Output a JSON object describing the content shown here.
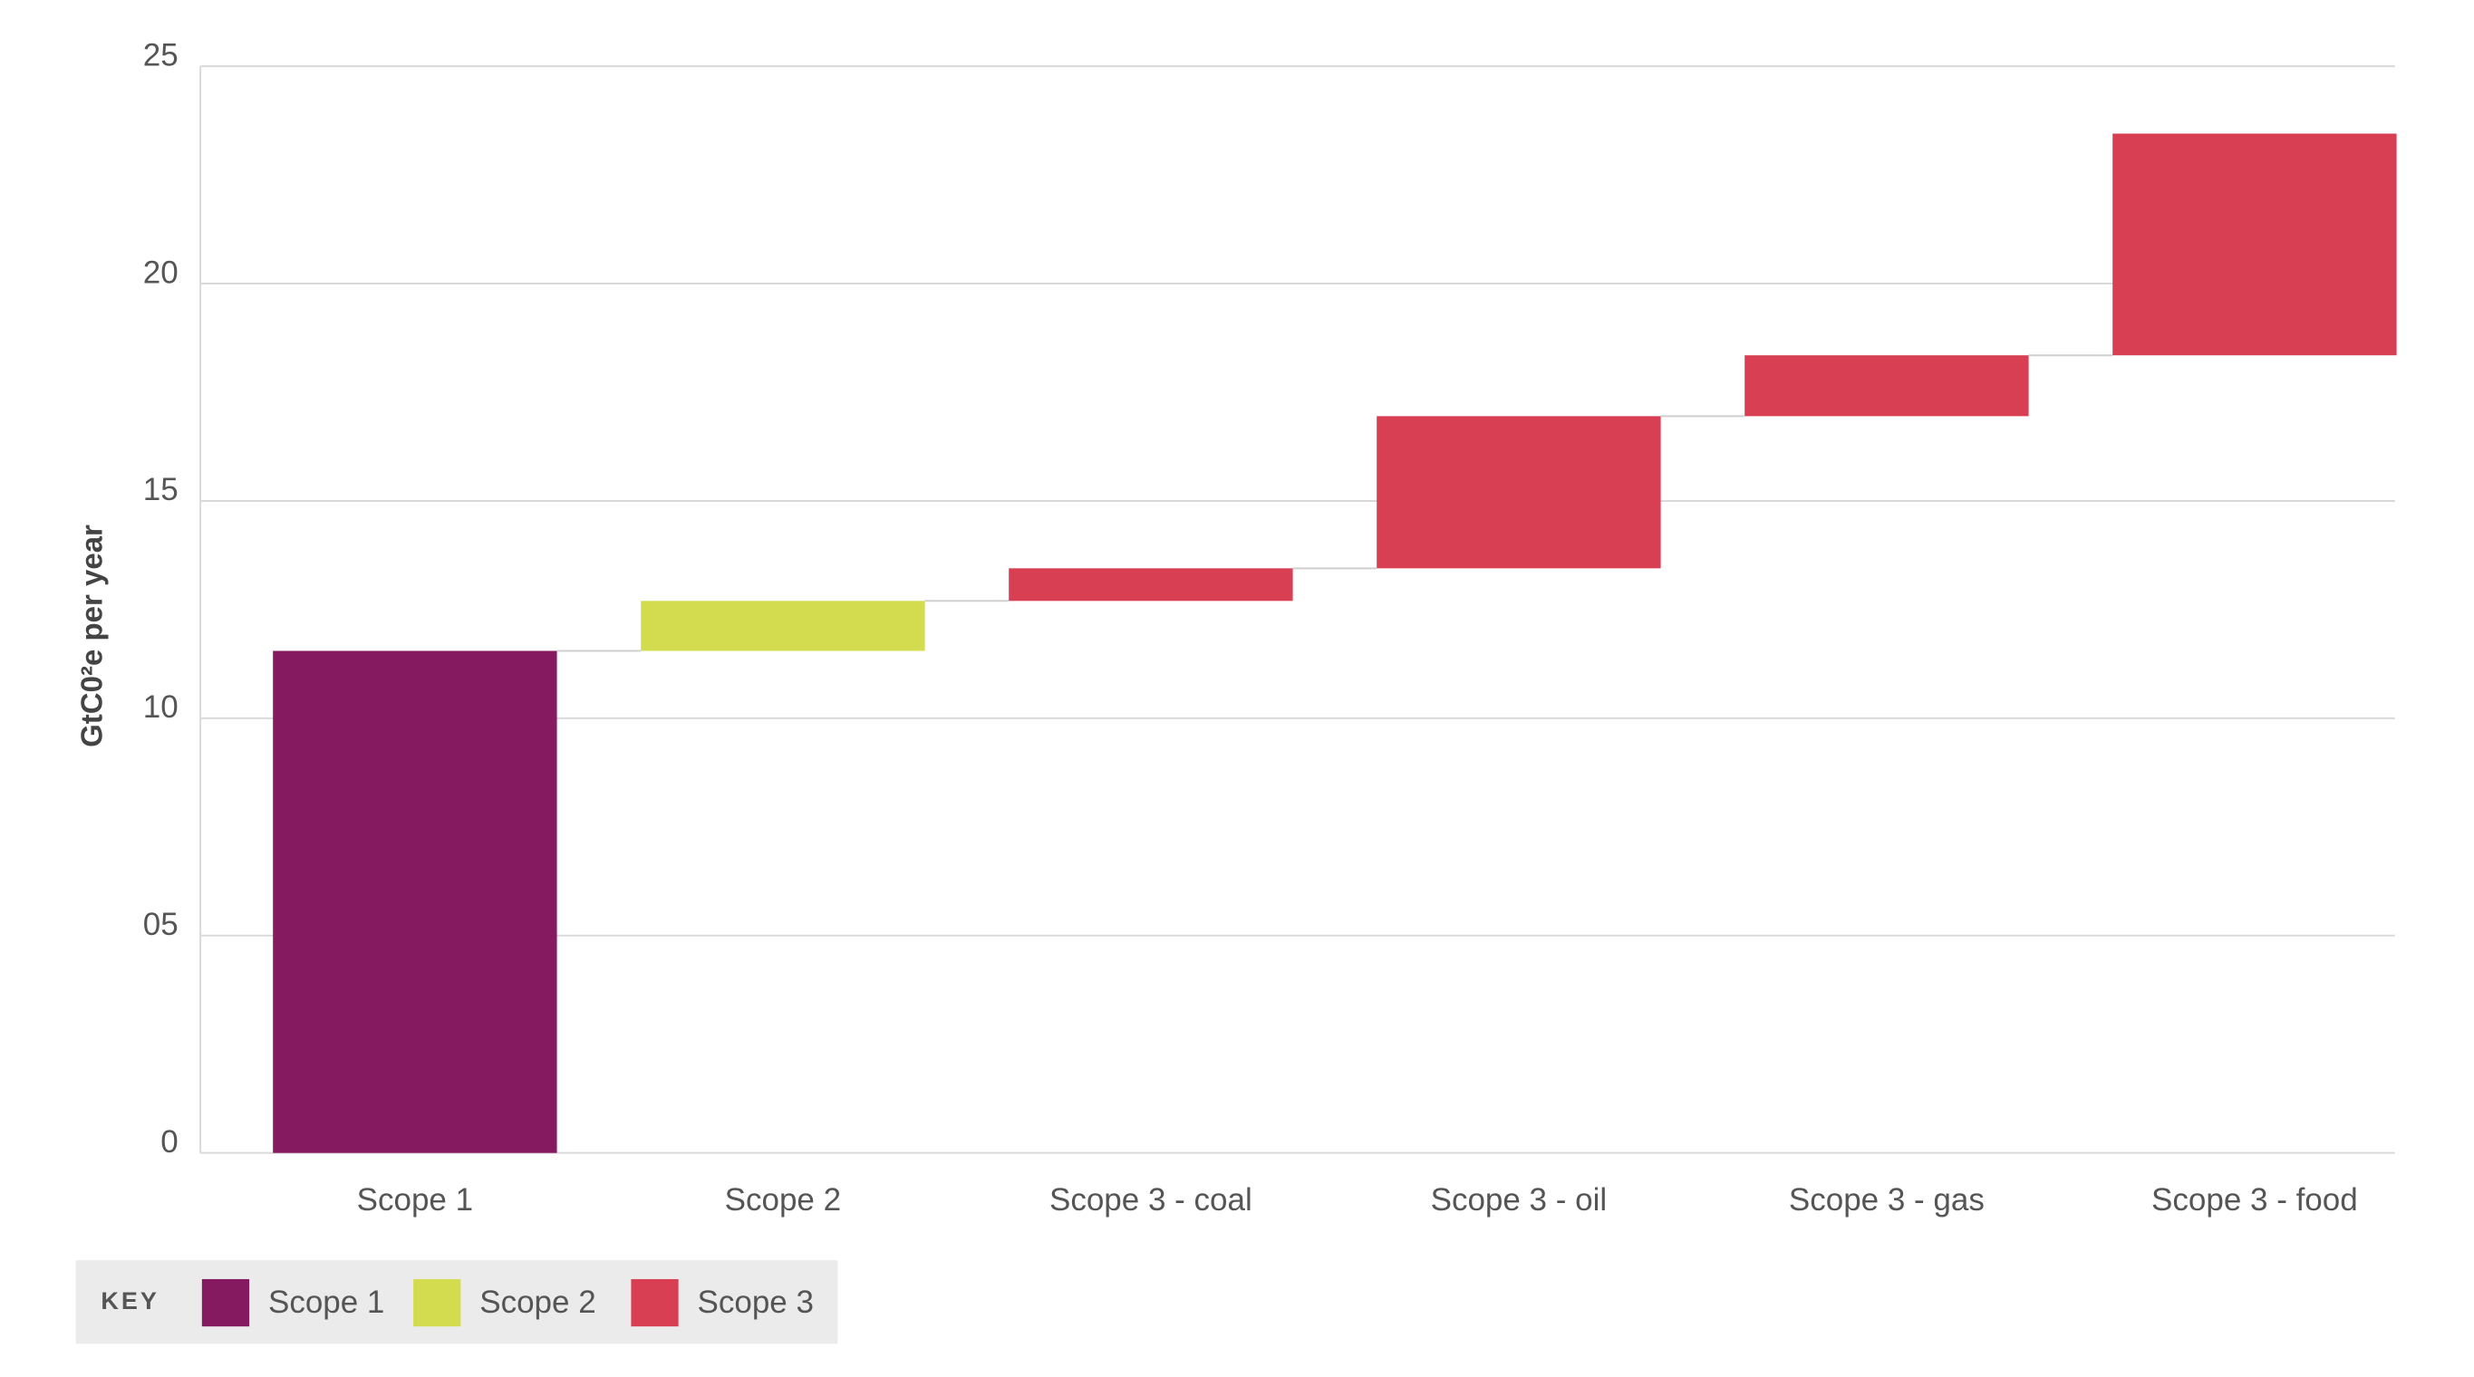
{
  "chart_data": {
    "type": "waterfall",
    "y_label": "GtC0²e per year",
    "categories": [
      "Scope 1",
      "Scope 2",
      "Scope 3 - coal",
      "Scope 3 - oil",
      "Scope 3 - gas",
      "Scope 3 - food"
    ],
    "values": [
      11.55,
      1.15,
      0.75,
      3.5,
      1.4,
      5.1
    ],
    "colors": [
      "#861a61",
      "#d3dc4e",
      "#d93f52",
      "#d93f52",
      "#d93f52",
      "#d93f52"
    ],
    "ylim": [
      0,
      25
    ],
    "yticks": [
      0,
      {
        "value": 5,
        "label": "05"
      },
      10,
      15,
      20,
      25
    ],
    "grid": true,
    "legend": {
      "title": "KEY",
      "entries": [
        {
          "name": "Scope 1",
          "color": "#861a61"
        },
        {
          "name": "Scope 2",
          "color": "#d3dc4e"
        },
        {
          "name": "Scope 3",
          "color": "#d93f52"
        }
      ]
    }
  }
}
